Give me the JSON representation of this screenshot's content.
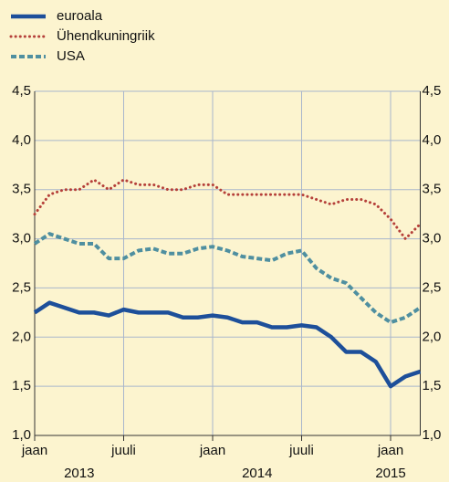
{
  "chart_data": {
    "type": "line",
    "x": [
      "2013-01",
      "2013-02",
      "2013-03",
      "2013-04",
      "2013-05",
      "2013-06",
      "2013-07",
      "2013-08",
      "2013-09",
      "2013-10",
      "2013-11",
      "2013-12",
      "2014-01",
      "2014-02",
      "2014-03",
      "2014-04",
      "2014-05",
      "2014-06",
      "2014-07",
      "2014-08",
      "2014-09",
      "2014-10",
      "2014-11",
      "2014-12",
      "2015-01",
      "2015-02",
      "2015-03"
    ],
    "xlim": [
      "2013-01",
      "2015-03"
    ],
    "xticks": [
      {
        "value": "2013-01",
        "label": "jaan"
      },
      {
        "value": "2013-07",
        "label": "juuli"
      },
      {
        "value": "2014-01",
        "label": "jaan"
      },
      {
        "value": "2014-07",
        "label": "juuli"
      },
      {
        "value": "2015-01",
        "label": "jaan"
      }
    ],
    "year_labels": [
      {
        "value": "2013-04",
        "label": "2013"
      },
      {
        "value": "2014-04",
        "label": "2014"
      },
      {
        "value": "2015-01",
        "label": "2015"
      }
    ],
    "ylim": [
      1.0,
      4.5
    ],
    "yticks": [
      {
        "value": 1.0,
        "label": "1,0"
      },
      {
        "value": 1.5,
        "label": "1,5"
      },
      {
        "value": 2.0,
        "label": "2,0"
      },
      {
        "value": 2.5,
        "label": "2,5"
      },
      {
        "value": 3.0,
        "label": "3,0"
      },
      {
        "value": 3.5,
        "label": "3,5"
      },
      {
        "value": 4.0,
        "label": "4,0"
      },
      {
        "value": 4.5,
        "label": "4,5"
      }
    ],
    "grid": true,
    "legend": "top-left",
    "series": [
      {
        "name": "euroala",
        "color": "#1d4f9a",
        "style": "solid",
        "values": [
          2.25,
          2.35,
          2.3,
          2.25,
          2.25,
          2.22,
          2.28,
          2.25,
          2.25,
          2.25,
          2.2,
          2.2,
          2.22,
          2.2,
          2.15,
          2.15,
          2.1,
          2.1,
          2.12,
          2.1,
          2.0,
          1.85,
          1.85,
          1.75,
          1.5,
          1.6,
          1.65
        ]
      },
      {
        "name": "Ühendkuningriik",
        "color": "#b5403a",
        "style": "dotted",
        "values": [
          3.25,
          3.45,
          3.5,
          3.5,
          3.6,
          3.5,
          3.6,
          3.55,
          3.55,
          3.5,
          3.5,
          3.55,
          3.55,
          3.45,
          3.45,
          3.45,
          3.45,
          3.45,
          3.45,
          3.4,
          3.35,
          3.4,
          3.4,
          3.35,
          3.2,
          3.0,
          3.15
        ]
      },
      {
        "name": "USA",
        "color": "#4f8fa0",
        "style": "dashed",
        "values": [
          2.95,
          3.05,
          3.0,
          2.95,
          2.95,
          2.8,
          2.8,
          2.88,
          2.9,
          2.85,
          2.85,
          2.9,
          2.92,
          2.88,
          2.82,
          2.8,
          2.78,
          2.85,
          2.88,
          2.7,
          2.6,
          2.55,
          2.4,
          2.25,
          2.15,
          2.2,
          2.3
        ]
      }
    ]
  }
}
